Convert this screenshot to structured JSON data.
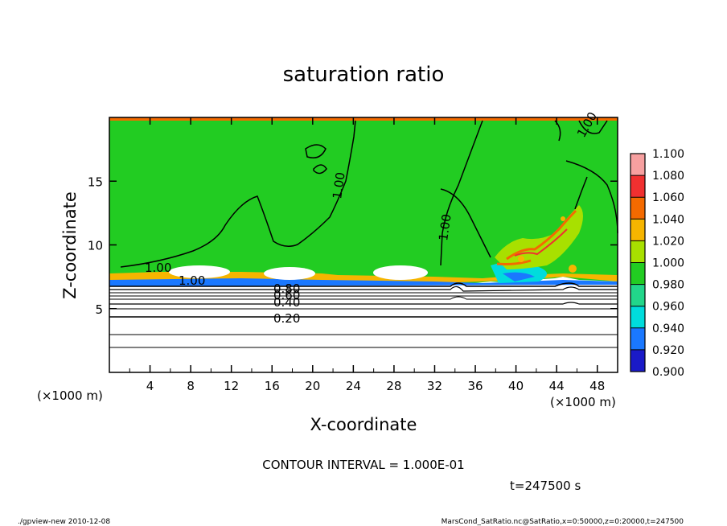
{
  "chart_data": {
    "type": "heatmap",
    "title": "saturation ratio",
    "xlabel": "X-coordinate",
    "ylabel": "Z-coordinate",
    "x_unit": "(×1000 m)",
    "z_unit": "(×1000 m)",
    "xlim": [
      0,
      50
    ],
    "ylim": [
      0,
      20
    ],
    "xticks": [
      4,
      8,
      12,
      16,
      20,
      24,
      28,
      32,
      36,
      40,
      44,
      48
    ],
    "yticks": [
      5,
      10,
      15
    ],
    "colorbar": {
      "levels": [
        "1.100",
        "1.080",
        "1.060",
        "1.040",
        "1.020",
        "1.000",
        "0.980",
        "0.960",
        "0.940",
        "0.920",
        "0.900"
      ],
      "colors": [
        "#f7a0a0",
        "#f03030",
        "#f46a00",
        "#f6b500",
        "#a8e000",
        "#22cc22",
        "#22d68a",
        "#00dcdc",
        "#1a78ff",
        "#1a1ac8",
        "#6a1aa0"
      ]
    },
    "contour_labels": [
      "1.00",
      "1.00",
      "1.00",
      "1.00",
      "1.00",
      "0.80",
      "0.60",
      "0.40",
      "0.20"
    ],
    "contour_interval_text": "CONTOUR INTERVAL = 1.000E-01",
    "time_text": "t=247500 s"
  },
  "footer": {
    "left": "./gpview-new  2010-12-08",
    "right": "MarsCond_SatRatio.nc@SatRatio,x=0:50000,z=0:20000,t=247500"
  }
}
